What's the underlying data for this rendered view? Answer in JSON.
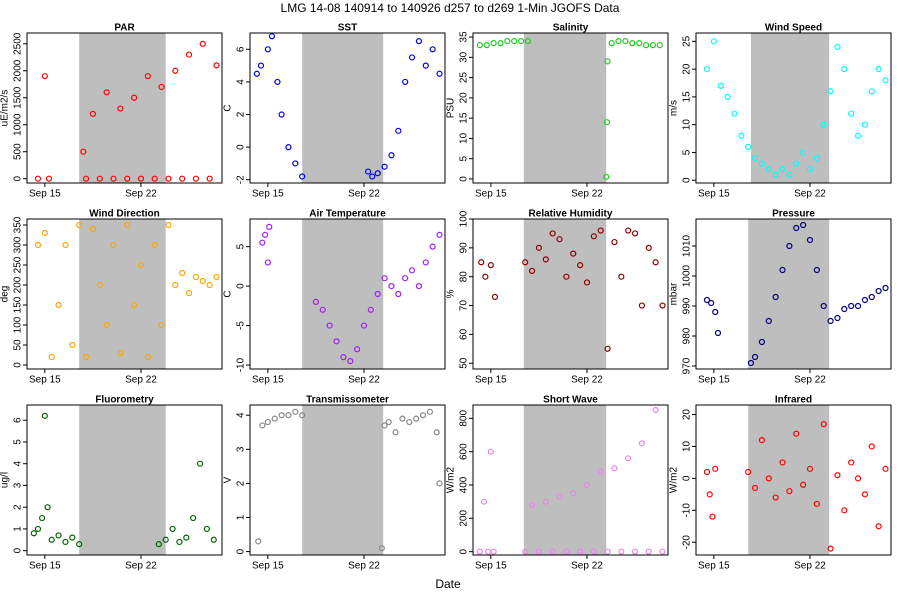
{
  "title": "LMG  14-08    140914 to 140926    d257 to d269   1-Min  JGOFS Data",
  "xlabel": "Date",
  "chart_data": [
    {
      "type": "scatter",
      "title": "PAR",
      "ylabel": "uE/m2/s",
      "color": "#ff0000",
      "shade": [
        260.5,
        266.8
      ],
      "x": [
        257.5,
        258,
        258.3,
        260.8,
        261,
        261.5,
        262,
        262.5,
        263,
        263.5,
        264,
        264.5,
        265,
        265.5,
        266,
        266.5,
        267,
        267.5,
        268,
        268.5,
        269,
        269.5,
        270,
        270.5
      ],
      "values": [
        0,
        1900,
        0,
        500,
        0,
        1200,
        0,
        1600,
        0,
        1300,
        0,
        1500,
        0,
        1900,
        0,
        1700,
        0,
        2000,
        0,
        2300,
        0,
        2500,
        0,
        2100
      ],
      "xlim": [
        256.7,
        270.9
      ],
      "xticks": [
        {
          "value": 258,
          "label": "Sep 15"
        },
        {
          "value": 265,
          "label": "Sep 22"
        }
      ],
      "ylim": [
        -80,
        2700
      ],
      "yticks": [
        0,
        500,
        1000,
        1500,
        2000,
        2500
      ]
    },
    {
      "type": "scatter",
      "title": "SST",
      "ylabel": "C",
      "color": "#0000ee",
      "shade": [
        260.5,
        266.4
      ],
      "x": [
        257.2,
        257.5,
        258,
        258.3,
        258.7,
        259,
        259.5,
        260,
        260.5,
        265.3,
        265.6,
        266,
        266.5,
        267,
        267.5,
        268,
        268.5,
        269,
        269.5,
        270,
        270.5
      ],
      "values": [
        4.5,
        5,
        6,
        6.8,
        4,
        2,
        0,
        -1,
        -1.8,
        -1.5,
        -1.8,
        -1.6,
        -1.2,
        -0.5,
        1,
        4,
        5.5,
        6.5,
        5,
        6,
        4.5
      ],
      "xlim": [
        256.7,
        270.9
      ],
      "xticks": [
        {
          "value": 258,
          "label": "Sep 15"
        },
        {
          "value": 265,
          "label": "Sep 22"
        }
      ],
      "ylim": [
        -2.2,
        7
      ],
      "yticks": [
        -2,
        0,
        2,
        4,
        6
      ]
    },
    {
      "type": "scatter",
      "title": "Salinity",
      "ylabel": "PSU",
      "color": "#22cc22",
      "shade": [
        260.4,
        266.4
      ],
      "x": [
        257.2,
        257.7,
        258.2,
        258.7,
        259.2,
        259.7,
        260.2,
        260.7,
        266.4,
        266.45,
        266.5,
        266.8,
        267.3,
        267.8,
        268.3,
        268.8,
        269.3,
        269.8,
        270.3
      ],
      "values": [
        33,
        33,
        33.5,
        33.5,
        34,
        34,
        34,
        34,
        0.5,
        14,
        29,
        33.5,
        34,
        34,
        33.5,
        33.5,
        33,
        33,
        33
      ],
      "xlim": [
        256.7,
        270.9
      ],
      "xticks": [
        {
          "value": 258,
          "label": "Sep 15"
        },
        {
          "value": 265,
          "label": "Sep 22"
        }
      ],
      "ylim": [
        -1,
        36
      ],
      "yticks": [
        0,
        5,
        10,
        15,
        20,
        25,
        30,
        35
      ]
    },
    {
      "type": "scatter",
      "title": "Wind Speed",
      "ylabel": "m/s",
      "color": "#00ffff",
      "shade": [
        260.7,
        266.4
      ],
      "x": [
        257.5,
        258,
        258.5,
        259,
        259.5,
        260,
        260.5,
        261,
        261.5,
        262,
        262.5,
        263,
        263.5,
        264,
        264.5,
        265,
        265.5,
        266,
        266.5,
        267,
        267.5,
        268,
        268.5,
        269,
        269.5,
        270,
        270.5
      ],
      "values": [
        20,
        25,
        17,
        15,
        12,
        8,
        6,
        4,
        3,
        2,
        1,
        2,
        1,
        3,
        5,
        2,
        4,
        10,
        16,
        24,
        20,
        12,
        8,
        10,
        16,
        20,
        18
      ],
      "xlim": [
        256.7,
        270.9
      ],
      "xticks": [
        {
          "value": 258,
          "label": "Sep 15"
        },
        {
          "value": 265,
          "label": "Sep 22"
        }
      ],
      "ylim": [
        -0.5,
        26.5
      ],
      "yticks": [
        0,
        5,
        10,
        15,
        20,
        25
      ]
    },
    {
      "type": "scatter",
      "title": "Wind Direction",
      "ylabel": "deg",
      "color": "#ffa500",
      "shade": [
        260.5,
        266.8
      ],
      "x": [
        257.5,
        258,
        258.5,
        259,
        259.5,
        260,
        260.5,
        261,
        261.5,
        262,
        262.5,
        263,
        263.5,
        264,
        264.5,
        265,
        265.5,
        266,
        266.5,
        267,
        267.5,
        268,
        268.5,
        269,
        269.5,
        270,
        270.5
      ],
      "values": [
        300,
        330,
        20,
        150,
        300,
        50,
        350,
        20,
        340,
        200,
        100,
        300,
        30,
        350,
        150,
        250,
        20,
        300,
        100,
        350,
        200,
        230,
        180,
        220,
        210,
        200,
        220
      ],
      "xlim": [
        256.7,
        270.9
      ],
      "xticks": [
        {
          "value": 258,
          "label": "Sep 15"
        },
        {
          "value": 265,
          "label": "Sep 22"
        }
      ],
      "ylim": [
        -10,
        365
      ],
      "yticks": [
        0,
        50,
        100,
        150,
        200,
        250,
        300,
        350
      ]
    },
    {
      "type": "scatter",
      "title": "Air Temperature",
      "ylabel": "C",
      "color": "#a020f0",
      "shade": [
        260.5,
        266.4
      ],
      "x": [
        257.6,
        257.8,
        258,
        258.1,
        261.5,
        262,
        262.5,
        263,
        263.5,
        264,
        264.5,
        265,
        265.5,
        266,
        266.5,
        267,
        267.5,
        268,
        268.5,
        269,
        269.5,
        270,
        270.5
      ],
      "values": [
        5.5,
        6.5,
        3,
        7.5,
        -2,
        -3,
        -5,
        -7,
        -9,
        -9.5,
        -8,
        -5,
        -3,
        -1,
        1,
        0,
        -1,
        1,
        2,
        0,
        3,
        5,
        6.5
      ],
      "xlim": [
        256.7,
        270.9
      ],
      "xticks": [
        {
          "value": 258,
          "label": "Sep 15"
        },
        {
          "value": 265,
          "label": "Sep 22"
        }
      ],
      "ylim": [
        -10.5,
        8.5
      ],
      "yticks": [
        -10,
        -5,
        0,
        5
      ]
    },
    {
      "type": "scatter",
      "title": "Relative Humidity",
      "ylabel": "%",
      "color": "#8b0000",
      "shade": [
        260.4,
        266.4
      ],
      "x": [
        257.3,
        257.6,
        258,
        258.3,
        260.5,
        261,
        261.5,
        262,
        262.5,
        263,
        263.5,
        264,
        264.5,
        265,
        265.5,
        266,
        266.5,
        267,
        267.5,
        268,
        268.5,
        269,
        269.5,
        270,
        270.5
      ],
      "values": [
        85,
        80,
        84,
        73,
        85,
        82,
        90,
        86,
        95,
        93,
        80,
        88,
        84,
        78,
        94,
        96,
        55,
        92,
        80,
        96,
        95,
        70,
        90,
        85,
        70
      ],
      "xlim": [
        256.7,
        270.9
      ],
      "xticks": [
        {
          "value": 258,
          "label": "Sep 15"
        },
        {
          "value": 265,
          "label": "Sep 22"
        }
      ],
      "ylim": [
        48,
        100
      ],
      "yticks": [
        50,
        60,
        70,
        80,
        90,
        100
      ]
    },
    {
      "type": "scatter",
      "title": "Pressure",
      "ylabel": "mbar",
      "color": "#000080",
      "shade": [
        260.5,
        266.4
      ],
      "x": [
        257.5,
        257.8,
        258.1,
        258.3,
        260.7,
        261,
        261.5,
        262,
        262.5,
        263,
        263.5,
        264,
        264.5,
        265,
        265.5,
        266,
        266.5,
        267,
        267.5,
        268,
        268.5,
        269,
        269.5,
        270,
        270.5
      ],
      "values": [
        992,
        991,
        988,
        981,
        971,
        973,
        978,
        985,
        993,
        1002,
        1010,
        1016,
        1017,
        1012,
        1002,
        990,
        985,
        986,
        989,
        990,
        990,
        992,
        993,
        995,
        996
      ],
      "xlim": [
        256.7,
        270.9
      ],
      "xticks": [
        {
          "value": 258,
          "label": "Sep 15"
        },
        {
          "value": 265,
          "label": "Sep 22"
        }
      ],
      "ylim": [
        969,
        1019
      ],
      "yticks": [
        970,
        980,
        990,
        1000,
        1010
      ]
    },
    {
      "type": "scatter",
      "title": "Fluorometry",
      "ylabel": "ug/l",
      "color": "#006400",
      "shade": [
        260.5,
        266.8
      ],
      "x": [
        257.2,
        257.5,
        257.8,
        258,
        258.2,
        258.5,
        259,
        259.5,
        260,
        260.5,
        266.3,
        266.8,
        267.3,
        267.8,
        268.3,
        268.8,
        269.3,
        269.8,
        270.3
      ],
      "values": [
        0.8,
        1,
        1.5,
        6.2,
        2,
        0.5,
        0.7,
        0.4,
        0.6,
        0.3,
        0.3,
        0.5,
        1,
        0.4,
        0.6,
        1.5,
        4,
        1,
        0.5
      ],
      "xlim": [
        256.7,
        270.9
      ],
      "xticks": [
        {
          "value": 258,
          "label": "Sep 15"
        },
        {
          "value": 265,
          "label": "Sep 22"
        }
      ],
      "ylim": [
        -0.2,
        6.7
      ],
      "yticks": [
        0,
        1,
        2,
        3,
        4,
        5,
        6
      ]
    },
    {
      "type": "scatter",
      "title": "Transmissometer",
      "ylabel": "V",
      "color": "#888888",
      "shade": [
        260.5,
        266.4
      ],
      "x": [
        257.3,
        257.6,
        258,
        258.5,
        259,
        259.5,
        260,
        260.5,
        266.3,
        266.5,
        266.8,
        267.3,
        267.8,
        268.3,
        268.8,
        269.3,
        269.8,
        270.3,
        270.5
      ],
      "values": [
        0.3,
        3.7,
        3.8,
        3.9,
        4,
        4,
        4.1,
        4,
        0.1,
        3.7,
        3.8,
        3.5,
        3.9,
        3.8,
        3.9,
        4,
        4.1,
        3.5,
        2
      ],
      "xlim": [
        256.7,
        270.9
      ],
      "xticks": [
        {
          "value": 258,
          "label": "Sep 15"
        },
        {
          "value": 265,
          "label": "Sep 22"
        }
      ],
      "ylim": [
        -0.1,
        4.3
      ],
      "yticks": [
        0,
        1,
        2,
        3,
        4
      ]
    },
    {
      "type": "scatter",
      "title": "Short Wave",
      "ylabel": "W/m2",
      "color": "#ee82ee",
      "shade": [
        260.4,
        266.4
      ],
      "x": [
        257.2,
        257.5,
        257.8,
        258,
        258.2,
        260.5,
        261,
        261.5,
        262,
        262.5,
        263,
        263.5,
        264,
        264.5,
        265,
        265.5,
        266,
        266.5,
        267,
        267.5,
        268,
        268.5,
        269,
        269.5,
        270,
        270.5
      ],
      "values": [
        0,
        300,
        0,
        600,
        0,
        0,
        280,
        0,
        300,
        0,
        330,
        0,
        350,
        0,
        400,
        0,
        480,
        0,
        500,
        0,
        560,
        0,
        650,
        0,
        850,
        0
      ],
      "xlim": [
        256.7,
        270.9
      ],
      "xticks": [
        {
          "value": 258,
          "label": "Sep 15"
        },
        {
          "value": 265,
          "label": "Sep 22"
        }
      ],
      "ylim": [
        -20,
        880
      ],
      "yticks": [
        0,
        200,
        400,
        600,
        800
      ]
    },
    {
      "type": "scatter",
      "title": "Infrared",
      "ylabel": "W/m2",
      "color": "#ff0000",
      "shade": [
        260.5,
        266.4
      ],
      "x": [
        257.5,
        257.7,
        257.9,
        258.1,
        260.5,
        261,
        261.5,
        262,
        262.5,
        263,
        263.5,
        264,
        264.5,
        265,
        265.5,
        266,
        266.5,
        267,
        267.5,
        268,
        268.5,
        269,
        269.5,
        270,
        270.5
      ],
      "values": [
        2,
        -5,
        -12,
        3,
        2,
        -3,
        12,
        0,
        -6,
        5,
        -4,
        14,
        -2,
        3,
        -8,
        17,
        -22,
        1,
        -10,
        5,
        0,
        -5,
        10,
        -15,
        3
      ],
      "xlim": [
        256.7,
        270.9
      ],
      "xticks": [
        {
          "value": 258,
          "label": "Sep 15"
        },
        {
          "value": 265,
          "label": "Sep 22"
        }
      ],
      "ylim": [
        -24,
        23
      ],
      "yticks": [
        -20,
        -10,
        0,
        10,
        20
      ]
    }
  ]
}
